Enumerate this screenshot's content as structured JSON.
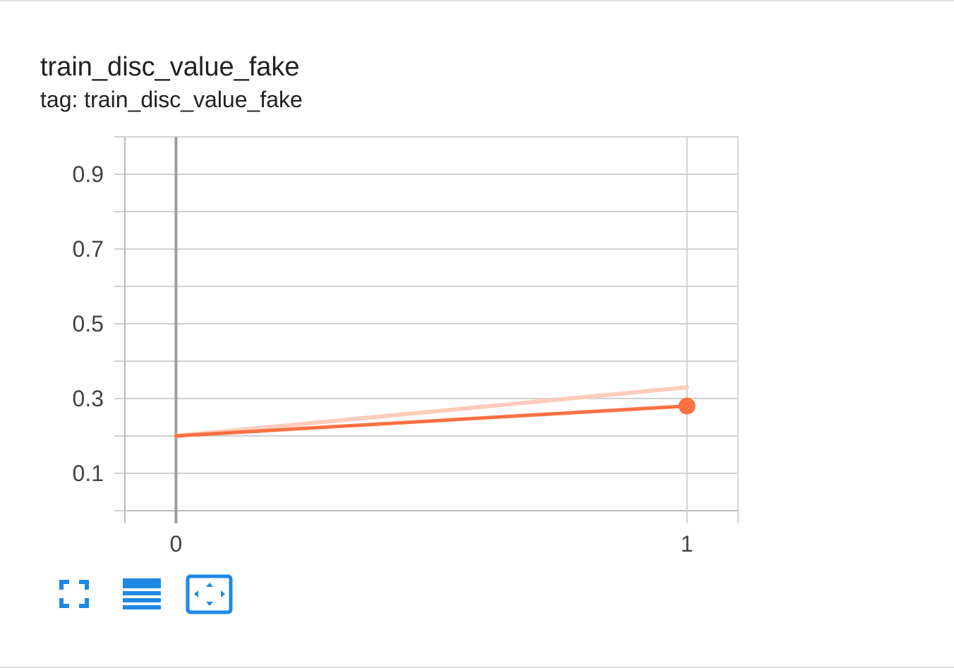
{
  "card": {
    "title": "train_disc_value_fake",
    "subtitle": "tag: train_disc_value_fake"
  },
  "toolbar": {
    "buttons": [
      {
        "icon": "fullscreen-icon"
      },
      {
        "icon": "toggle-log-scale-icon"
      },
      {
        "icon": "fit-domain-icon"
      }
    ],
    "accent": "#1e88e5"
  },
  "chart_data": {
    "type": "line",
    "title": "train_disc_value_fake",
    "subtitle": "tag: train_disc_value_fake",
    "x_ticks": [
      "0",
      "1"
    ],
    "y_ticks": [
      "0.1",
      "0.3",
      "0.5",
      "0.7",
      "0.9"
    ],
    "xlim": [
      -0.1,
      1.1
    ],
    "ylim": [
      0.0,
      1.0
    ],
    "grid": true,
    "series": [
      {
        "role": "raw",
        "color": "#ffccbc",
        "x": [
          0,
          1
        ],
        "y": [
          0.2,
          0.33
        ]
      },
      {
        "role": "smoothed",
        "color": "#ff7043",
        "x": [
          0,
          1
        ],
        "y": [
          0.2,
          0.28
        ]
      }
    ]
  }
}
